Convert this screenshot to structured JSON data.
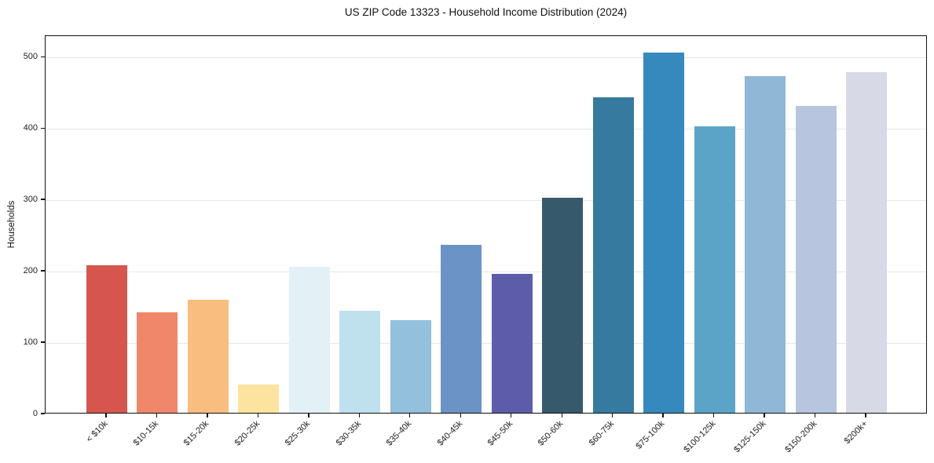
{
  "chart_data": {
    "type": "bar",
    "title": "US ZIP Code 13323 - Household Income Distribution (2024)",
    "xlabel": "",
    "ylabel": "Households",
    "categories": [
      "< $10k",
      "$10-15k",
      "$15-20k",
      "$20-25k",
      "$25-30k",
      "$30-35k",
      "$35-40k",
      "$40-45k",
      "$45-50k",
      "$50-60k",
      "$60-75k",
      "$75-100k",
      "$100-125k",
      "$125-150k",
      "$150-200k",
      "$200k+"
    ],
    "values": [
      207,
      141,
      158,
      40,
      205,
      143,
      130,
      235,
      195,
      301,
      442,
      505,
      401,
      472,
      430,
      477
    ],
    "bar_colors": [
      "#d6564f",
      "#f1876a",
      "#f9bd80",
      "#fce3a0",
      "#e3f0f6",
      "#bfe0ed",
      "#92c0dd",
      "#6b93c6",
      "#5d5cab",
      "#36596b",
      "#377a9f",
      "#3589bd",
      "#5ba4c8",
      "#90b7d5",
      "#b7c6de",
      "#d7d9e7"
    ],
    "yticks": [
      0,
      100,
      200,
      300,
      400,
      500
    ],
    "ylim": [
      0,
      530
    ],
    "grid": "horizontal",
    "legend": "none",
    "axis_color": "#111111",
    "grid_color": "#e7e7e9",
    "background_color": "#ffffff"
  }
}
